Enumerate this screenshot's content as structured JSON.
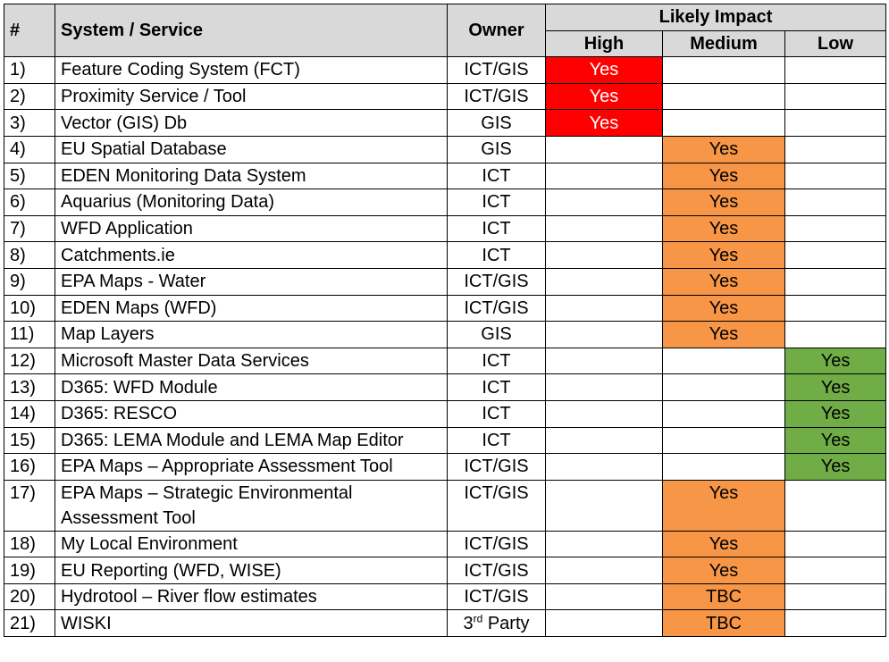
{
  "header": {
    "num": "#",
    "system": "System / Service",
    "owner": "Owner",
    "impact": "Likely Impact",
    "high": "High",
    "medium": "Medium",
    "low": "Low"
  },
  "colors": {
    "high": "#ff0000",
    "medium": "#f79646",
    "low": "#70ad47",
    "header_bg": "#d9d9d9"
  },
  "rows": [
    {
      "num": "1)",
      "system": "Feature Coding System (FCT)",
      "owner": "ICT/GIS",
      "impact": "high",
      "value": "Yes"
    },
    {
      "num": "2)",
      "system": "Proximity Service / Tool",
      "owner": "ICT/GIS",
      "impact": "high",
      "value": "Yes"
    },
    {
      "num": "3)",
      "system": "Vector (GIS) Db",
      "owner": "GIS",
      "impact": "high",
      "value": "Yes"
    },
    {
      "num": "4)",
      "system": "EU Spatial Database",
      "owner": "GIS",
      "impact": "medium",
      "value": "Yes"
    },
    {
      "num": "5)",
      "system": "EDEN Monitoring Data System",
      "owner": "ICT",
      "impact": "medium",
      "value": "Yes"
    },
    {
      "num": "6)",
      "system": "Aquarius (Monitoring Data)",
      "owner": "ICT",
      "impact": "medium",
      "value": "Yes"
    },
    {
      "num": "7)",
      "system": "WFD Application",
      "owner": "ICT",
      "impact": "medium",
      "value": "Yes"
    },
    {
      "num": "8)",
      "system": "Catchments.ie",
      "owner": "ICT",
      "impact": "medium",
      "value": "Yes"
    },
    {
      "num": "9)",
      "system": "EPA Maps - Water",
      "owner": "ICT/GIS",
      "impact": "medium",
      "value": "Yes"
    },
    {
      "num": "10)",
      "system": "EDEN Maps (WFD)",
      "owner": "ICT/GIS",
      "impact": "medium",
      "value": "Yes"
    },
    {
      "num": "11)",
      "system": "Map Layers",
      "owner": "GIS",
      "impact": "medium",
      "value": "Yes"
    },
    {
      "num": "12)",
      "system": "Microsoft Master Data Services",
      "owner": "ICT",
      "impact": "low",
      "value": "Yes"
    },
    {
      "num": "13)",
      "system": "D365: WFD Module",
      "owner": "ICT",
      "impact": "low",
      "value": "Yes"
    },
    {
      "num": "14)",
      "system": "D365: RESCO",
      "owner": "ICT",
      "impact": "low",
      "value": "Yes"
    },
    {
      "num": "15)",
      "system": "D365: LEMA Module and LEMA Map Editor",
      "owner": "ICT",
      "impact": "low",
      "value": "Yes"
    },
    {
      "num": "16)",
      "system": "EPA Maps – Appropriate Assessment Tool",
      "owner": "ICT/GIS",
      "impact": "low",
      "value": "Yes"
    },
    {
      "num": "17)",
      "system": "EPA Maps – Strategic Environmental",
      "system_line2": "Assessment Tool",
      "owner": "ICT/GIS",
      "impact": "medium",
      "value": "Yes"
    },
    {
      "num": "18)",
      "system": "My Local Environment",
      "owner": "ICT/GIS",
      "impact": "medium",
      "value": "Yes"
    },
    {
      "num": "19)",
      "system": "EU Reporting (WFD, WISE)",
      "owner": "ICT/GIS",
      "impact": "medium",
      "value": "Yes"
    },
    {
      "num": "20)",
      "system": "Hydrotool – River flow estimates",
      "owner": "ICT/GIS",
      "impact": "medium",
      "value": "TBC"
    },
    {
      "num": "21)",
      "system": "WISKI",
      "owner": "3",
      "owner_sup": "rd",
      "owner_suffix": " Party",
      "impact": "medium",
      "value": "TBC"
    }
  ]
}
